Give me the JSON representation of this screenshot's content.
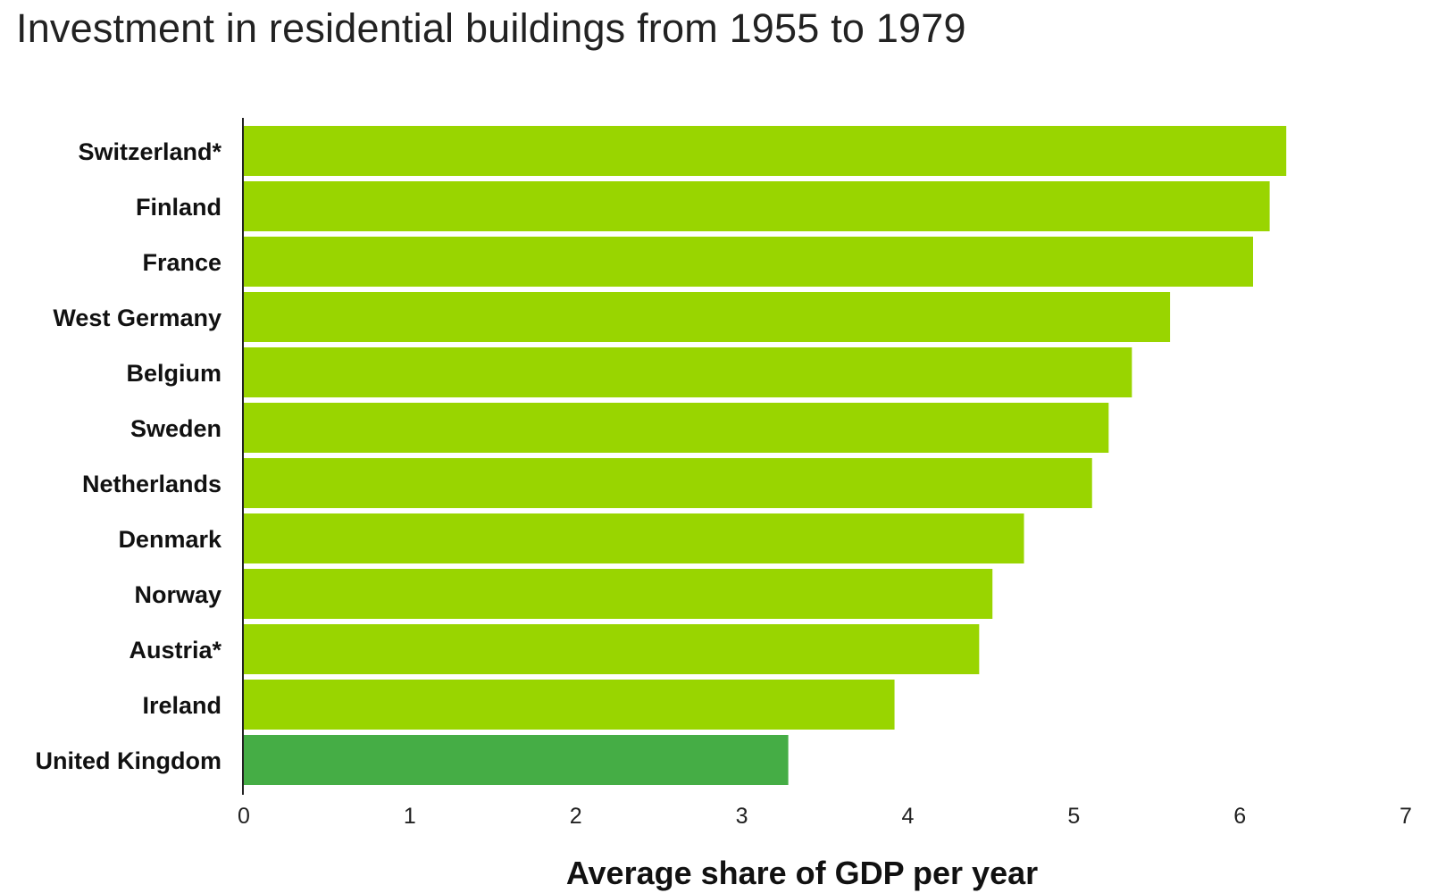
{
  "colors": {
    "bar_default": "#99d500",
    "bar_highlight": "#45ad45",
    "axis": "#222222",
    "background": "#ffffff"
  },
  "chart_data": {
    "type": "bar",
    "orientation": "horizontal",
    "title": "Investment in residential buildings from 1955 to 1979",
    "xlabel": "Average share of GDP per year",
    "ylabel": "",
    "xlim": [
      0,
      7
    ],
    "xticks": [
      "0",
      "1",
      "2",
      "3",
      "4",
      "5",
      "6",
      "7"
    ],
    "grid": false,
    "legend": "none",
    "categories": [
      "Switzerland*",
      "Finland",
      "France",
      "West Germany",
      "Belgium",
      "Sweden",
      "Netherlands",
      "Denmark",
      "Norway",
      "Austria*",
      "Ireland",
      "United Kingdom"
    ],
    "values": [
      6.28,
      6.18,
      6.08,
      5.58,
      5.35,
      5.21,
      5.11,
      4.7,
      4.51,
      4.43,
      3.92,
      3.28
    ],
    "highlight_category": "United Kingdom"
  }
}
